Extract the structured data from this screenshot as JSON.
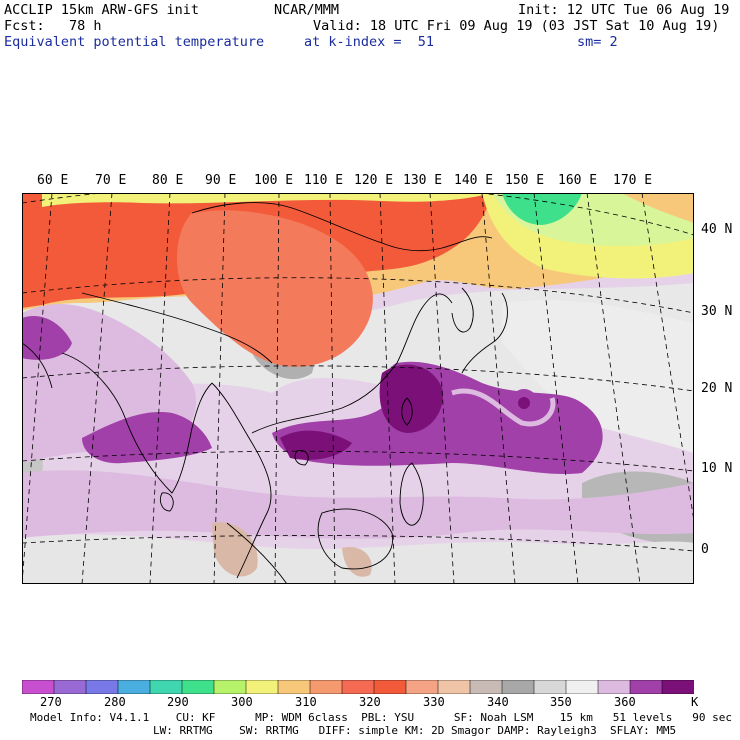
{
  "header": {
    "model": "ACCLIP 15km ARW-GFS init",
    "org": "NCAR/MMM",
    "init": "Init: 12 UTC Tue 06 Aug 19",
    "fcst": "Fcst:   78 h",
    "valid": "Valid: 18 UTC Fri 09 Aug 19 (03 JST Sat 10 Aug 19)",
    "field": "Equivalent potential temperature",
    "level": "at k-index =  51",
    "smooth": "sm= 2"
  },
  "map": {
    "lon_labels": [
      "60 E",
      "70 E",
      "80 E",
      "90 E",
      "100 E",
      "110 E",
      "120 E",
      "130 E",
      "140 E",
      "150 E",
      "160 E",
      "170 E"
    ],
    "lat_labels": [
      "40 N",
      "30 N",
      "20 N",
      "10 N",
      "0"
    ]
  },
  "colorbar": {
    "unit": "K",
    "ticks": [
      "270",
      "280",
      "290",
      "300",
      "310",
      "320",
      "330",
      "340",
      "350",
      "360"
    ],
    "colors": [
      "#c84fcf",
      "#9a6ad4",
      "#7878e6",
      "#4aaee0",
      "#3fd6b0",
      "#3fe08c",
      "#b6f26a",
      "#f2f27a",
      "#f7c87a",
      "#f59a6e",
      "#f46a52",
      "#f25a3a",
      "#f4a384",
      "#f0c4a6",
      "#c8bbb5",
      "#a8a8a8",
      "#d8d8d8",
      "#f0f0f0",
      "#ddbbe0",
      "#a040a8",
      "#7a1078"
    ]
  },
  "footer": {
    "line1": "Model Info: V4.1.1    CU: KF      MP: WDM 6class  PBL: YSU      SF: Noah LSM    15 km   51 levels   90 sec",
    "line2": "LW: RRTMG    SW: RRTMG   DIFF: simple KM: 2D Smagor DAMP: Rayleigh3  SFLAY: MM5"
  }
}
